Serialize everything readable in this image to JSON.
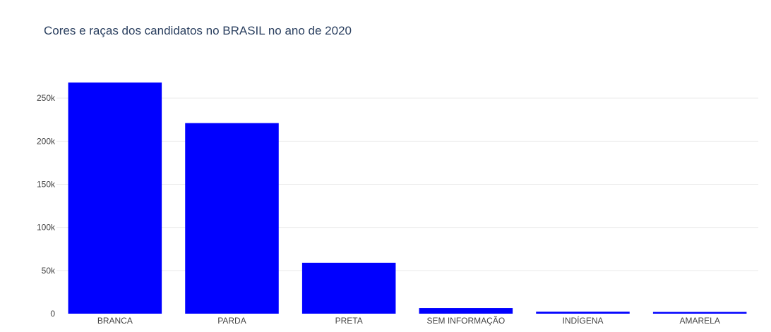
{
  "chart_data": {
    "type": "bar",
    "title": "Cores e raças dos candidatos no BRASIL no ano de 2020",
    "xlabel": "",
    "ylabel": "",
    "categories": [
      "BRANCA",
      "PARDA",
      "PRETA",
      "SEM INFORMAÇÃO",
      "INDÍGENA",
      "AMARELA"
    ],
    "values": [
      268000,
      221000,
      59000,
      6500,
      2300,
      2000
    ],
    "ylim": [
      0,
      282000
    ],
    "yticks": [
      0,
      50000,
      100000,
      150000,
      200000,
      250000
    ],
    "ytick_labels": [
      "0",
      "50k",
      "100k",
      "150k",
      "200k",
      "250k"
    ],
    "grid": true,
    "bar_color": "#0000ff",
    "grid_color": "#ebebeb"
  }
}
